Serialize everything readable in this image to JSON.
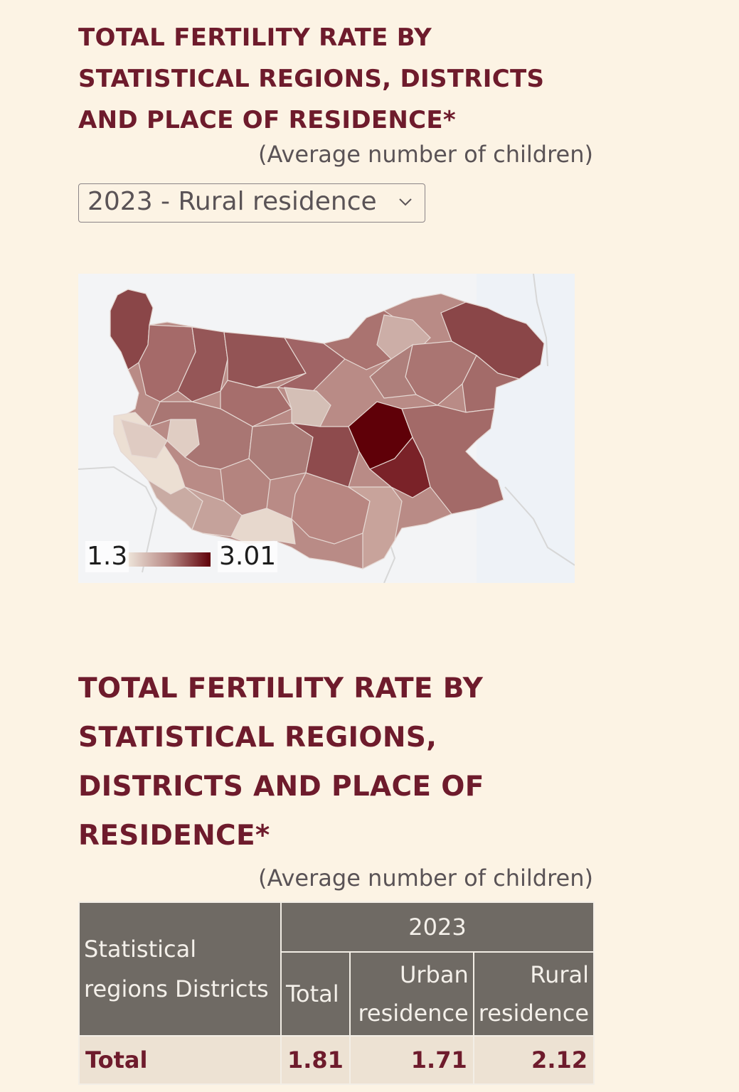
{
  "map_section": {
    "title": "TOTAL FERTILITY RATE BY STATISTICAL REGIONS, DISTRICTS AND PLACE OF RESIDENCE*",
    "subtitle": "(Average number of children)",
    "selector": {
      "selected": "2023 - Rural residence"
    },
    "legend": {
      "min": "1.3",
      "max": "3.01",
      "color_low": "#efe7dc",
      "color_high": "#5f0008"
    }
  },
  "table_section": {
    "title": "TOTAL FERTILITY RATE BY STATISTICAL REGIONS, DISTRICTS AND PLACE OF RESIDENCE*",
    "subtitle": "(Average number of children)",
    "header": {
      "region_col": "Statistical regions Districts",
      "year": "2023",
      "total": "Total",
      "urban": "Urban residence",
      "rural": "Rural residence"
    },
    "rows": [
      {
        "name": "Total",
        "total": "1.81",
        "urban": "1.71",
        "rural": "2.12"
      }
    ]
  },
  "colors": {
    "background": "#fcf3e4",
    "title": "#6e1b2c",
    "table_header": "#6f6a64",
    "table_row": "#ede2d3"
  }
}
